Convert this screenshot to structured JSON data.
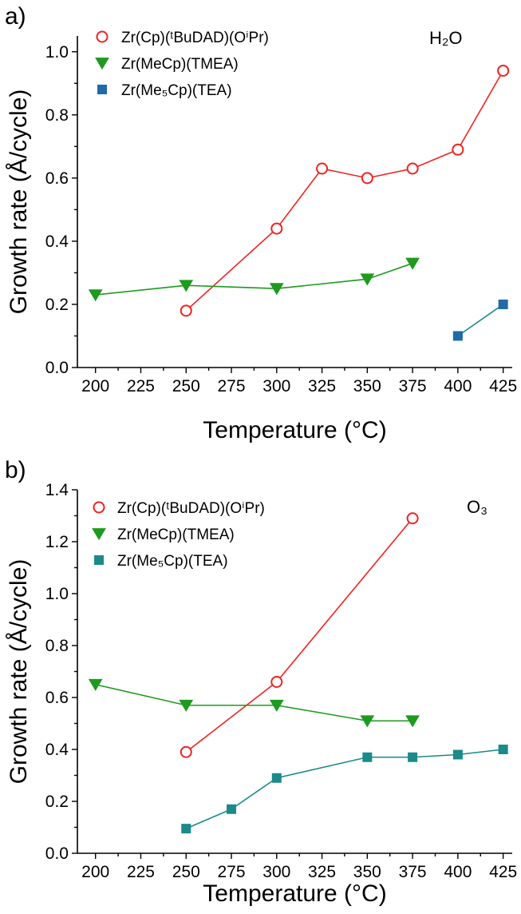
{
  "chart_data": [
    {
      "type": "line",
      "panel_label": "a)",
      "annotation": "H₂O",
      "xlabel": "Temperature (°C)",
      "ylabel": "Growth rate (Å/cycle)",
      "xlim": [
        190,
        430
      ],
      "ylim": [
        0,
        1.05
      ],
      "xticks": [
        200,
        225,
        250,
        275,
        300,
        325,
        350,
        375,
        400,
        425
      ],
      "yticks": [
        0.0,
        0.2,
        0.4,
        0.6,
        0.8,
        1.0
      ],
      "ytick_labels": [
        "0.0",
        "0.2",
        "0.4",
        "0.6",
        "0.8",
        "1.0"
      ],
      "legend_position": "top-left",
      "series": [
        {
          "name": "Zr(Cp)(ᵗBuDAD)(OⁱPr)",
          "color": "#ee2222",
          "marker": "open-circle",
          "x": [
            250,
            300,
            325,
            350,
            375,
            400,
            425
          ],
          "y": [
            0.18,
            0.44,
            0.63,
            0.6,
            0.63,
            0.69,
            0.94
          ]
        },
        {
          "name": "Zr(MeCp)(TMEA)",
          "color": "#1e9a1e",
          "marker": "down-triangle",
          "x": [
            200,
            250,
            300,
            350,
            375
          ],
          "y": [
            0.23,
            0.26,
            0.25,
            0.28,
            0.33
          ]
        },
        {
          "name": "Zr(Me₅Cp)(TEA)",
          "color": "#1a8a8a",
          "marker": "square",
          "marker_color": "#1f6aa8",
          "x": [
            400,
            425
          ],
          "y": [
            0.1,
            0.2
          ]
        }
      ]
    },
    {
      "type": "line",
      "panel_label": "b)",
      "annotation": "O₃",
      "xlabel": "Temperature (°C)",
      "ylabel": "Growth rate (Å/cycle)",
      "xlim": [
        190,
        430
      ],
      "ylim": [
        0,
        1.4
      ],
      "xticks": [
        200,
        225,
        250,
        275,
        300,
        325,
        350,
        375,
        400,
        425
      ],
      "yticks": [
        0.0,
        0.2,
        0.4,
        0.6,
        0.8,
        1.0,
        1.2,
        1.4
      ],
      "ytick_labels": [
        "0.0",
        "0.2",
        "0.4",
        "0.6",
        "0.8",
        "1.0",
        "1.2",
        "1.4"
      ],
      "legend_position": "top-left",
      "series": [
        {
          "name": "Zr(Cp)(ᵗBuDAD)(OⁱPr)",
          "color": "#ee2222",
          "marker": "open-circle",
          "x": [
            250,
            300,
            375
          ],
          "y": [
            0.39,
            0.66,
            1.29
          ]
        },
        {
          "name": "Zr(MeCp)(TMEA)",
          "color": "#1e9a1e",
          "marker": "down-triangle",
          "x": [
            200,
            250,
            300,
            350,
            375
          ],
          "y": [
            0.65,
            0.57,
            0.57,
            0.51,
            0.51
          ]
        },
        {
          "name": "Zr(Me₅Cp)(TEA)",
          "color": "#1a8a8a",
          "marker": "square",
          "marker_color": "#1a8a8a",
          "x": [
            250,
            275,
            300,
            350,
            375,
            400,
            425
          ],
          "y": [
            0.095,
            0.17,
            0.29,
            0.37,
            0.37,
            0.38,
            0.4
          ]
        }
      ]
    }
  ]
}
